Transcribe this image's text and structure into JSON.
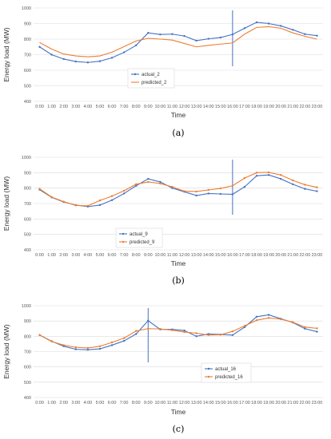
{
  "chart_data": [
    {
      "type": "line",
      "caption": "(a)",
      "xlabel": "Time",
      "ylabel": "Energy load (MW)",
      "ylim": [
        400,
        1000
      ],
      "yticks": [
        400,
        500,
        600,
        700,
        800,
        900,
        1000
      ],
      "categories": [
        "0:00",
        "1:00",
        "2:00",
        "3:00",
        "4:00",
        "5:00",
        "6:00",
        "7:00",
        "8:00",
        "9:00",
        "10:00",
        "11:00",
        "12:00",
        "13:00",
        "14:00",
        "15:00",
        "16:00",
        "17:00",
        "18:00",
        "19:00",
        "20:00",
        "21:00",
        "22:00",
        "23:00"
      ],
      "marker_at": "16:00",
      "legend_position": "center",
      "series": [
        {
          "name": "actual_2",
          "color": "#4472c4",
          "marker": true,
          "values": [
            750,
            700,
            672,
            656,
            650,
            658,
            680,
            715,
            760,
            840,
            830,
            832,
            820,
            790,
            802,
            810,
            830,
            870,
            908,
            900,
            885,
            860,
            832,
            822
          ]
        },
        {
          "name": "predicted_2",
          "color": "#ed7d31",
          "marker": false,
          "values": [
            778,
            736,
            704,
            692,
            686,
            692,
            716,
            752,
            788,
            805,
            800,
            794,
            772,
            750,
            760,
            768,
            775,
            832,
            875,
            880,
            870,
            840,
            818,
            800
          ]
        }
      ]
    },
    {
      "type": "line",
      "caption": "(b)",
      "xlabel": "Time",
      "ylabel": "Energy load  (MW)",
      "ylim": [
        400,
        1000
      ],
      "yticks": [
        400,
        500,
        600,
        700,
        800,
        900,
        1000
      ],
      "categories": [
        "0:00",
        "1:00",
        "2:00",
        "3:00",
        "4:00",
        "5:00",
        "6:00",
        "7:00",
        "8:00",
        "9:00",
        "10:00",
        "11:00",
        "12:00",
        "13:00",
        "14:00",
        "15:00",
        "16:00",
        "17:00",
        "18:00",
        "19:00",
        "20:00",
        "21:00",
        "22:00",
        "23:00"
      ],
      "marker_at": "16:00",
      "legend_position": "center",
      "series": [
        {
          "name": "actual_9",
          "color": "#4472c4",
          "marker": true,
          "values": [
            790,
            740,
            710,
            690,
            680,
            690,
            722,
            765,
            815,
            860,
            840,
            800,
            776,
            752,
            765,
            762,
            760,
            808,
            880,
            885,
            860,
            825,
            795,
            780
          ]
        },
        {
          "name": "predicted_9",
          "color": "#ed7d31",
          "marker": true,
          "values": [
            795,
            742,
            712,
            688,
            685,
            720,
            748,
            783,
            825,
            840,
            830,
            808,
            780,
            778,
            788,
            798,
            815,
            865,
            900,
            902,
            885,
            850,
            822,
            805
          ]
        }
      ]
    },
    {
      "type": "line",
      "caption": "(c)",
      "xlabel": "Time",
      "ylabel": "Energy load (MW)",
      "ylim": [
        400,
        1000
      ],
      "yticks": [
        400,
        500,
        600,
        700,
        800,
        900,
        1000
      ],
      "categories": [
        "0:00",
        "1:00",
        "2:00",
        "3:00",
        "4:00",
        "5:00",
        "6:00",
        "7:00",
        "8:00",
        "9:00",
        "10:00",
        "11:00",
        "12:00",
        "13:00",
        "14:00",
        "15:00",
        "16:00",
        "17:00",
        "18:00",
        "19:00",
        "20:00",
        "21:00",
        "22:00",
        "23:00"
      ],
      "marker_at": "9:00",
      "legend_position": "lower-right",
      "series": [
        {
          "name": "actual_16",
          "color": "#4472c4",
          "marker": true,
          "values": [
            808,
            768,
            735,
            715,
            712,
            718,
            742,
            770,
            815,
            902,
            845,
            845,
            838,
            800,
            815,
            812,
            808,
            860,
            928,
            940,
            915,
            890,
            850,
            830
          ]
        },
        {
          "name": "predicted_16",
          "color": "#ed7d31",
          "marker": true,
          "values": [
            808,
            766,
            742,
            728,
            724,
            735,
            760,
            788,
            835,
            850,
            848,
            840,
            828,
            820,
            808,
            810,
            832,
            868,
            905,
            920,
            912,
            892,
            860,
            852
          ]
        }
      ]
    }
  ]
}
